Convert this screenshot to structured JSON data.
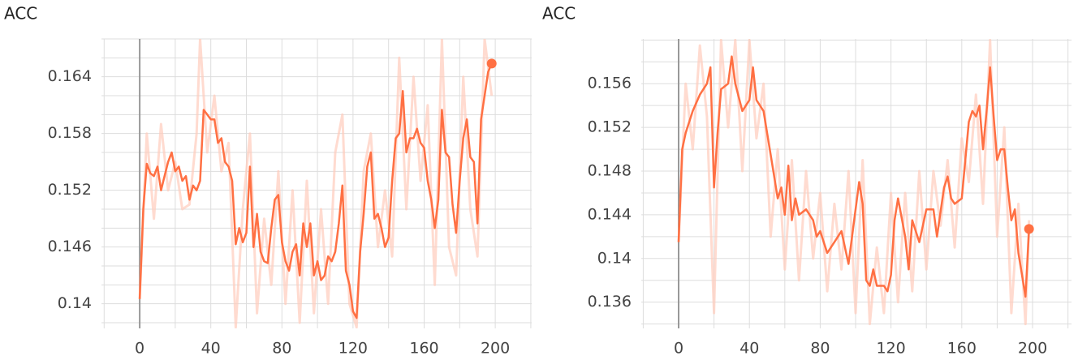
{
  "chart_data": [
    {
      "type": "line",
      "title": "ACC",
      "xlim": [
        -21.5,
        220.5
      ],
      "xticks": [
        0,
        40,
        80,
        120,
        160,
        200
      ],
      "xminor": [
        -20,
        0,
        20,
        40,
        60,
        80,
        100,
        120,
        140,
        160,
        180,
        200,
        220
      ],
      "ylim": [
        0.1374,
        0.168
      ],
      "yticks": [
        0.164,
        0.158,
        0.152,
        0.146,
        0.14
      ],
      "yminor": [
        0.138,
        0.14,
        0.142,
        0.144,
        0.146,
        0.148,
        0.15,
        0.152,
        0.154,
        0.156,
        0.158,
        0.16,
        0.162,
        0.164,
        0.166,
        0.168
      ],
      "grid": true,
      "zero_line": true,
      "series": [
        {
          "color": "#ffccbc",
          "opacity": 0.7,
          "width": 3,
          "end_marker": false,
          "x": [
            0,
            4,
            8,
            12,
            16,
            20,
            24,
            28,
            32,
            34,
            38,
            42,
            46,
            50,
            54,
            58,
            62,
            66,
            70,
            74,
            78,
            82,
            86,
            90,
            94,
            98,
            102,
            106,
            110,
            114,
            118,
            122,
            126,
            130,
            134,
            138,
            142,
            146,
            150,
            154,
            158,
            162,
            166,
            170,
            174,
            178,
            182,
            186,
            190,
            194,
            198
          ],
          "values": [
            0.1405,
            0.158,
            0.149,
            0.159,
            0.152,
            0.155,
            0.15,
            0.1505,
            0.158,
            0.168,
            0.156,
            0.162,
            0.154,
            0.157,
            0.1375,
            0.15,
            0.158,
            0.139,
            0.149,
            0.142,
            0.154,
            0.14,
            0.152,
            0.138,
            0.153,
            0.139,
            0.15,
            0.14,
            0.156,
            0.16,
            0.14,
            0.1375,
            0.154,
            0.158,
            0.146,
            0.152,
            0.145,
            0.166,
            0.15,
            0.164,
            0.153,
            0.161,
            0.142,
            0.168,
            0.146,
            0.143,
            0.164,
            0.15,
            0.145,
            0.168,
            0.162
          ]
        },
        {
          "color": "#ff7043",
          "opacity": 1,
          "width": 2.5,
          "end_marker": true,
          "x": [
            0,
            2,
            4,
            6,
            8,
            10,
            12,
            14,
            16,
            18,
            20,
            22,
            24,
            26,
            28,
            30,
            32,
            34,
            36,
            38,
            40,
            42,
            44,
            46,
            48,
            50,
            52,
            54,
            56,
            58,
            60,
            62,
            64,
            66,
            68,
            70,
            72,
            74,
            76,
            78,
            80,
            82,
            84,
            86,
            88,
            90,
            92,
            94,
            96,
            98,
            100,
            102,
            104,
            106,
            108,
            110,
            112,
            114,
            116,
            118,
            120,
            122,
            124,
            126,
            128,
            130,
            132,
            134,
            136,
            138,
            140,
            142,
            144,
            146,
            148,
            150,
            152,
            154,
            156,
            158,
            160,
            162,
            164,
            166,
            168,
            170,
            172,
            174,
            176,
            178,
            180,
            182,
            184,
            186,
            188,
            190,
            192,
            194,
            196,
            198
          ],
          "values": [
            0.1405,
            0.15,
            0.1548,
            0.1538,
            0.1535,
            0.1545,
            0.152,
            0.1535,
            0.155,
            0.156,
            0.154,
            0.1545,
            0.153,
            0.1535,
            0.151,
            0.1525,
            0.152,
            0.153,
            0.1605,
            0.16,
            0.1595,
            0.1595,
            0.157,
            0.1575,
            0.155,
            0.1545,
            0.153,
            0.1463,
            0.148,
            0.1465,
            0.1475,
            0.1545,
            0.146,
            0.1495,
            0.1455,
            0.1445,
            0.1443,
            0.148,
            0.151,
            0.1515,
            0.1465,
            0.1445,
            0.1435,
            0.1455,
            0.1463,
            0.143,
            0.1485,
            0.146,
            0.1485,
            0.143,
            0.1445,
            0.1425,
            0.143,
            0.145,
            0.1445,
            0.1455,
            0.1485,
            0.1525,
            0.1435,
            0.142,
            0.1392,
            0.1385,
            0.1455,
            0.1495,
            0.1545,
            0.156,
            0.149,
            0.1495,
            0.148,
            0.146,
            0.147,
            0.153,
            0.1575,
            0.158,
            0.1625,
            0.156,
            0.1575,
            0.1575,
            0.1585,
            0.157,
            0.1565,
            0.153,
            0.151,
            0.148,
            0.151,
            0.1605,
            0.156,
            0.1555,
            0.1505,
            0.1475,
            0.153,
            0.1575,
            0.1595,
            0.1555,
            0.155,
            0.1485,
            0.1595,
            0.162,
            0.1645,
            0.1654
          ]
        }
      ]
    },
    {
      "type": "line",
      "title": "ACC",
      "xlim": [
        -21.1,
        222
      ],
      "xticks": [
        0,
        40,
        80,
        120,
        160,
        200
      ],
      "xminor": [
        -20,
        0,
        20,
        40,
        60,
        80,
        100,
        120,
        140,
        160,
        180,
        200,
        220
      ],
      "ylim": [
        0.1336,
        0.1601
      ],
      "yticks": [
        0.156,
        0.152,
        0.148,
        0.144,
        0.14,
        0.136
      ],
      "yminor": [
        0.134,
        0.136,
        0.138,
        0.14,
        0.142,
        0.144,
        0.146,
        0.148,
        0.15,
        0.152,
        0.154,
        0.156,
        0.158,
        0.16
      ],
      "grid": true,
      "zero_line": true,
      "series": [
        {
          "color": "#ffccbc",
          "opacity": 0.7,
          "width": 3,
          "end_marker": false,
          "x": [
            0,
            4,
            8,
            12,
            16,
            20,
            24,
            28,
            32,
            36,
            40,
            44,
            48,
            52,
            56,
            60,
            64,
            68,
            72,
            76,
            80,
            84,
            88,
            92,
            96,
            100,
            104,
            108,
            112,
            116,
            120,
            124,
            128,
            132,
            136,
            140,
            144,
            148,
            152,
            156,
            160,
            164,
            168,
            172,
            176,
            180,
            184,
            188,
            192,
            196,
            198
          ],
          "values": [
            0.1415,
            0.156,
            0.15,
            0.1595,
            0.153,
            0.135,
            0.16,
            0.152,
            0.16,
            0.148,
            0.16,
            0.151,
            0.156,
            0.142,
            0.15,
            0.139,
            0.149,
            0.138,
            0.148,
            0.14,
            0.146,
            0.137,
            0.145,
            0.139,
            0.148,
            0.135,
            0.149,
            0.134,
            0.141,
            0.135,
            0.146,
            0.136,
            0.146,
            0.137,
            0.148,
            0.139,
            0.148,
            0.143,
            0.149,
            0.141,
            0.151,
            0.147,
            0.155,
            0.145,
            0.16,
            0.142,
            0.152,
            0.135,
            0.145,
            0.134,
            0.1435
          ]
        },
        {
          "color": "#ff7043",
          "opacity": 1,
          "width": 2.5,
          "end_marker": true,
          "x": [
            0,
            2,
            4,
            8,
            12,
            16,
            18,
            20,
            22,
            24,
            28,
            30,
            32,
            36,
            40,
            42,
            44,
            48,
            52,
            56,
            58,
            60,
            62,
            64,
            66,
            68,
            72,
            76,
            78,
            80,
            84,
            88,
            92,
            96,
            100,
            102,
            104,
            106,
            108,
            110,
            112,
            116,
            118,
            120,
            122,
            124,
            128,
            130,
            132,
            136,
            140,
            144,
            146,
            150,
            152,
            154,
            156,
            160,
            164,
            166,
            168,
            170,
            172,
            174,
            176,
            178,
            180,
            182,
            184,
            186,
            188,
            190,
            192,
            194,
            196,
            198
          ],
          "values": [
            0.1415,
            0.15,
            0.1515,
            0.1535,
            0.155,
            0.156,
            0.1575,
            0.1465,
            0.1515,
            0.1555,
            0.156,
            0.1585,
            0.156,
            0.1535,
            0.1545,
            0.1575,
            0.1545,
            0.1535,
            0.1495,
            0.1455,
            0.1465,
            0.144,
            0.1485,
            0.1435,
            0.1455,
            0.144,
            0.1445,
            0.1435,
            0.142,
            0.1425,
            0.1405,
            0.1415,
            0.1425,
            0.1395,
            0.1445,
            0.147,
            0.145,
            0.138,
            0.1375,
            0.139,
            0.1375,
            0.1375,
            0.137,
            0.1385,
            0.1435,
            0.1455,
            0.142,
            0.139,
            0.1435,
            0.1415,
            0.1445,
            0.1445,
            0.142,
            0.1465,
            0.1475,
            0.1455,
            0.145,
            0.1455,
            0.1525,
            0.1535,
            0.153,
            0.154,
            0.15,
            0.1535,
            0.1575,
            0.153,
            0.149,
            0.15,
            0.15,
            0.1465,
            0.1435,
            0.1445,
            0.1405,
            0.1385,
            0.1365,
            0.1427
          ]
        }
      ]
    }
  ]
}
